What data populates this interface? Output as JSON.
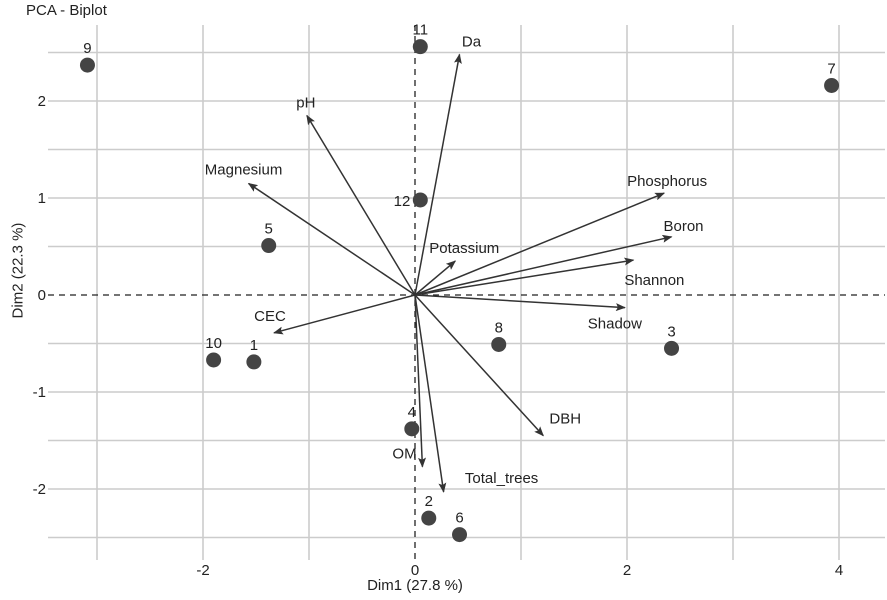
{
  "chart_data": {
    "type": "scatter",
    "subtype": "pca-biplot",
    "title": "PCA - Biplot",
    "xlabel": "Dim1 (27.8 %)",
    "ylabel": "Dim2 (22.3 %)",
    "xlim": [
      -3.5,
      4.4
    ],
    "ylim": [
      -2.7,
      2.8
    ],
    "x_ticks": [
      -2,
      0,
      2,
      4
    ],
    "y_ticks": [
      -2,
      -1,
      0,
      1,
      2
    ],
    "x_tick_labels": [
      "-2",
      "0",
      "2",
      "4"
    ],
    "y_tick_labels": [
      "-2",
      "-1",
      "0",
      "1",
      "2"
    ],
    "x_minor_grid": [
      -3,
      -1,
      1,
      3
    ],
    "y_minor_grid": [
      -2.5,
      -1.5,
      -0.5,
      0.5,
      1.5,
      2.5
    ],
    "grid": true,
    "reference_lines": {
      "x": 0,
      "y": 0,
      "style": "dashed"
    },
    "colors": {
      "points": "#444444",
      "arrows": "#333333",
      "grid": "#cccccc",
      "text": "#222222"
    },
    "individuals": [
      {
        "label": "1",
        "x": -1.52,
        "y": -0.69
      },
      {
        "label": "2",
        "x": 0.13,
        "y": -2.3
      },
      {
        "label": "3",
        "x": 2.42,
        "y": -0.55
      },
      {
        "label": "4",
        "x": -0.03,
        "y": -1.38
      },
      {
        "label": "5",
        "x": -1.38,
        "y": 0.51
      },
      {
        "label": "6",
        "x": 0.42,
        "y": -2.47
      },
      {
        "label": "7",
        "x": 3.93,
        "y": 2.16
      },
      {
        "label": "8",
        "x": 0.79,
        "y": -0.51
      },
      {
        "label": "9",
        "x": -3.09,
        "y": 2.37
      },
      {
        "label": "10",
        "x": -1.9,
        "y": -0.67
      },
      {
        "label": "11",
        "x": 0.05,
        "y": 2.56
      },
      {
        "label": "12",
        "x": 0.05,
        "y": 0.98
      }
    ],
    "variables": [
      {
        "label": "Da",
        "x": 0.42,
        "y": 2.48
      },
      {
        "label": "pH",
        "x": -1.02,
        "y": 1.85
      },
      {
        "label": "Magnesium",
        "x": -1.57,
        "y": 1.15
      },
      {
        "label": "Phosphorus",
        "x": 2.35,
        "y": 1.05
      },
      {
        "label": "Boron",
        "x": 2.42,
        "y": 0.6
      },
      {
        "label": "Shannon",
        "x": 2.06,
        "y": 0.36
      },
      {
        "label": "Potassium",
        "x": 0.38,
        "y": 0.35
      },
      {
        "label": "Shadow",
        "x": 1.98,
        "y": -0.13
      },
      {
        "label": "CEC",
        "x": -1.33,
        "y": -0.39
      },
      {
        "label": "DBH",
        "x": 1.21,
        "y": -1.45
      },
      {
        "label": "OM",
        "x": 0.07,
        "y": -1.77
      },
      {
        "label": "Total_trees",
        "x": 0.27,
        "y": -2.03
      }
    ]
  }
}
